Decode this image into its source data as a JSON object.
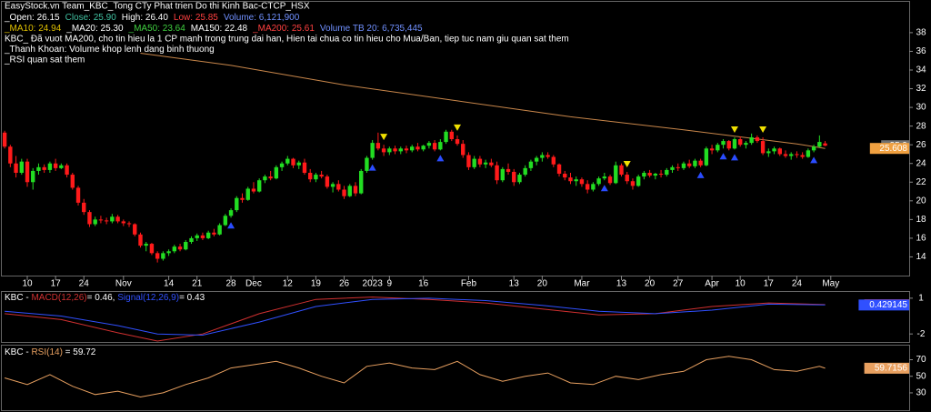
{
  "chart_data": [
    {
      "type": "candlestick",
      "title": "EasyStock.vn Team_KBC_Tong CTy Phat trien Do thi Kinh Bac-CTCP_HSX",
      "stats": [
        {
          "text": "_Open: 26.15",
          "color": "#ffffff"
        },
        {
          "text": "Close: 25.90",
          "color": "#40c0a0"
        },
        {
          "text": "High: 26.40",
          "color": "#ffffff"
        },
        {
          "text": "Low: 25.85",
          "color": "#ff4040"
        },
        {
          "text": "Volume: 6,121,900",
          "color": "#7090ff"
        }
      ],
      "moving_averages": [
        {
          "text": "_MA10: 24.94",
          "color": "#e0c000"
        },
        {
          "text": "_MA20: 25.30",
          "color": "#ffffff"
        },
        {
          "text": "_MA50: 23.64",
          "color": "#40d040"
        },
        {
          "text": "MA150: 22.48",
          "color": "#ffffff"
        },
        {
          "text": "_MA200: 25.61",
          "color": "#ff4040"
        },
        {
          "text": "Volume TB 20: 6,735,445",
          "color": "#7090ff"
        }
      ],
      "notes": [
        "KBC_ Đã vuot MA200, cho tin hieu la 1 CP manh trong trung dai han, Hien tai chua co tin hieu cho Mua/Ban, tiep tuc nam giu quan sat them",
        "_Thanh Khoan: Volume khop lenh dang binh thuong",
        "_RSI quan sat them"
      ],
      "xlim": [
        -0.5,
        147
      ],
      "xticks": [
        {
          "value": 4,
          "label": "10"
        },
        {
          "value": 9,
          "label": "17"
        },
        {
          "value": 14,
          "label": "24"
        },
        {
          "value": 21,
          "label": "Nov"
        },
        {
          "value": 29,
          "label": "14"
        },
        {
          "value": 34,
          "label": "21"
        },
        {
          "value": 40,
          "label": "28"
        },
        {
          "value": 44,
          "label": "Dec"
        },
        {
          "value": 50,
          "label": "12"
        },
        {
          "value": 55,
          "label": "19"
        },
        {
          "value": 60,
          "label": "26"
        },
        {
          "value": 65,
          "label": "2023"
        },
        {
          "value": 68,
          "label": "9"
        },
        {
          "value": 74,
          "label": "16"
        },
        {
          "value": 82,
          "label": "Feb"
        },
        {
          "value": 90,
          "label": "13"
        },
        {
          "value": 95,
          "label": "20"
        },
        {
          "value": 102,
          "label": "Mar"
        },
        {
          "value": 109,
          "label": "13"
        },
        {
          "value": 114,
          "label": "20"
        },
        {
          "value": 119,
          "label": "27"
        },
        {
          "value": 125,
          "label": "Apr"
        },
        {
          "value": 130,
          "label": "10"
        },
        {
          "value": 135,
          "label": "17"
        },
        {
          "value": 140,
          "label": "24"
        },
        {
          "value": 146,
          "label": "May"
        }
      ],
      "ylim": [
        12,
        41.3
      ],
      "yticks": [
        14,
        16,
        18,
        20,
        22,
        24,
        26,
        28,
        30,
        32,
        34,
        36,
        38
      ],
      "up_color": "#22dd22",
      "down_color": "#ff1a1a",
      "candles": [
        [
          27.3,
          27.5,
          25.6,
          25.8
        ],
        [
          25.8,
          26,
          23.6,
          24
        ],
        [
          24,
          24.8,
          22.5,
          23
        ],
        [
          23,
          24.5,
          22.8,
          24.2
        ],
        [
          24.2,
          24.5,
          21.5,
          22
        ],
        [
          22,
          23.5,
          21.2,
          23.2
        ],
        [
          23.2,
          24,
          22.8,
          23.6
        ],
        [
          23.6,
          23.9,
          23,
          23.3
        ],
        [
          23.3,
          24.2,
          23,
          24
        ],
        [
          24,
          24.5,
          23.2,
          23.5
        ],
        [
          23.5,
          24,
          23.4,
          23.8
        ],
        [
          23.8,
          24,
          22.5,
          22.8
        ],
        [
          22.8,
          23,
          21.2,
          21.4
        ],
        [
          21.4,
          21.6,
          19.5,
          19.8
        ],
        [
          19.8,
          20.2,
          18.5,
          18.8
        ],
        [
          18.8,
          19,
          17.2,
          17.5
        ],
        [
          17.5,
          18.3,
          17.3,
          18
        ],
        [
          18,
          18.4,
          17.6,
          17.9
        ],
        [
          17.9,
          18.2,
          17.5,
          17.8
        ],
        [
          17.8,
          18.6,
          17.6,
          18.3
        ],
        [
          18.3,
          18.5,
          17.6,
          17.8
        ],
        [
          17.8,
          18,
          17.3,
          17.6
        ],
        [
          17.6,
          17.8,
          17.2,
          17.5
        ],
        [
          17.5,
          17.6,
          16.2,
          16.4
        ],
        [
          16.4,
          16.6,
          15,
          15.2
        ],
        [
          15.2,
          15.6,
          14.6,
          15.4
        ],
        [
          15.4,
          15.5,
          14.2,
          14.4
        ],
        [
          14.4,
          14.6,
          13.4,
          13.8
        ],
        [
          13.8,
          14.6,
          13.6,
          14.4
        ],
        [
          14.4,
          14.8,
          14.1,
          14.6
        ],
        [
          14.6,
          15.3,
          14.4,
          15.1
        ],
        [
          15.1,
          15.4,
          14.6,
          14.8
        ],
        [
          14.8,
          15.8,
          14.7,
          15.6
        ],
        [
          15.6,
          16.2,
          15.4,
          16
        ],
        [
          16,
          16.5,
          15.7,
          16.3
        ],
        [
          16.3,
          16.6,
          15.8,
          16
        ],
        [
          16,
          16.8,
          15.9,
          16.6
        ],
        [
          16.6,
          17,
          16.2,
          16.4
        ],
        [
          16.4,
          17.6,
          16.3,
          17.4
        ],
        [
          17.4,
          18.6,
          17.3,
          18.4
        ],
        [
          18.4,
          19.2,
          18.2,
          19
        ],
        [
          19,
          20.5,
          18.8,
          20.3
        ],
        [
          20.3,
          20.8,
          19.8,
          20.1
        ],
        [
          20.1,
          21.5,
          20,
          21.3
        ],
        [
          21.3,
          22,
          20.8,
          21
        ],
        [
          21,
          22.4,
          20.9,
          22.2
        ],
        [
          22.2,
          22.8,
          21.9,
          22.6
        ],
        [
          22.6,
          23.2,
          22.2,
          22.4
        ],
        [
          22.4,
          23.8,
          22.3,
          23.6
        ],
        [
          23.6,
          24.2,
          23.2,
          24
        ],
        [
          24,
          24.8,
          23.8,
          24.5
        ],
        [
          24.5,
          24.6,
          23.5,
          23.8
        ],
        [
          23.8,
          24.3,
          23.4,
          24.1
        ],
        [
          24.1,
          24.5,
          22.8,
          23
        ],
        [
          23,
          23.4,
          22,
          22.3
        ],
        [
          22.3,
          23,
          22,
          22.8
        ],
        [
          22.8,
          23.2,
          22.4,
          22.6
        ],
        [
          22.6,
          22.8,
          21.3,
          21.5
        ],
        [
          21.5,
          22,
          20.9,
          21.8
        ],
        [
          21.8,
          22.2,
          21,
          21.2
        ],
        [
          21.2,
          21.6,
          20.2,
          20.5
        ],
        [
          20.5,
          21.8,
          20.4,
          21.6
        ],
        [
          21.6,
          22,
          20.5,
          20.8
        ],
        [
          20.8,
          23.4,
          20.7,
          23.2
        ],
        [
          23.2,
          24.8,
          23,
          24.6
        ],
        [
          24.6,
          26.5,
          24.4,
          26.2
        ],
        [
          26.2,
          27.3,
          25.4,
          25.6
        ],
        [
          25.6,
          26,
          24.8,
          25.2
        ],
        [
          25.2,
          25.8,
          24.9,
          25.6
        ],
        [
          25.6,
          25.9,
          25,
          25.3
        ],
        [
          25.3,
          25.8,
          25,
          25.6
        ],
        [
          25.6,
          25.9,
          25.1,
          25.4
        ],
        [
          25.4,
          26,
          25.2,
          25.8
        ],
        [
          25.8,
          26.2,
          25.3,
          25.5
        ],
        [
          25.5,
          26,
          25.3,
          25.9
        ],
        [
          25.9,
          26.4,
          25.6,
          26.2
        ],
        [
          26.2,
          26.5,
          25.3,
          25.5
        ],
        [
          25.5,
          26.6,
          25.4,
          26.3
        ],
        [
          26.3,
          27.6,
          26.1,
          27.4
        ],
        [
          27.4,
          27.6,
          26.4,
          26.6
        ],
        [
          26.6,
          27,
          25.9,
          26.1
        ],
        [
          26.1,
          26.5,
          24.6,
          24.9
        ],
        [
          24.9,
          25.2,
          23.3,
          23.6
        ],
        [
          23.6,
          24.8,
          23.4,
          24.5
        ],
        [
          24.5,
          24.8,
          23.6,
          23.9
        ],
        [
          23.9,
          24.4,
          23.5,
          24.1
        ],
        [
          24.1,
          24.5,
          23.6,
          23.8
        ],
        [
          23.8,
          24.2,
          21.8,
          22.2
        ],
        [
          22.2,
          23.6,
          22,
          23.4
        ],
        [
          23.4,
          24,
          22.8,
          23.1
        ],
        [
          23.1,
          23.4,
          21.6,
          22
        ],
        [
          22,
          23,
          21.8,
          22.8
        ],
        [
          22.8,
          23.8,
          22.6,
          23.5
        ],
        [
          23.5,
          24.4,
          23.2,
          24.2
        ],
        [
          24.2,
          24.8,
          23.8,
          24.6
        ],
        [
          24.6,
          25.2,
          24.2,
          24.9
        ],
        [
          24.9,
          25.2,
          24.5,
          24.7
        ],
        [
          24.7,
          24.9,
          23.6,
          23.9
        ],
        [
          23.9,
          24,
          22.6,
          22.9
        ],
        [
          22.9,
          23.2,
          22.2,
          22.5
        ],
        [
          22.5,
          23,
          21.8,
          22.1
        ],
        [
          22.1,
          22.6,
          21.6,
          22.3
        ],
        [
          22.3,
          22.5,
          21.5,
          21.8
        ],
        [
          21.8,
          22.2,
          20.8,
          21.2
        ],
        [
          21.2,
          22,
          21,
          21.8
        ],
        [
          21.8,
          22.6,
          21.6,
          22.4
        ],
        [
          22.4,
          23,
          22.2,
          22.6
        ],
        [
          22.6,
          22.8,
          21.7,
          21.9
        ],
        [
          21.9,
          24.2,
          21.8,
          23.8
        ],
        [
          23.8,
          24,
          22.6,
          22.8
        ],
        [
          22.8,
          23.1,
          21.8,
          22.1
        ],
        [
          22.1,
          22.4,
          21.2,
          21.6
        ],
        [
          21.6,
          22.8,
          21.5,
          22.6
        ],
        [
          22.6,
          23.2,
          22.3,
          23
        ],
        [
          23,
          23.3,
          22.5,
          22.7
        ],
        [
          22.7,
          23,
          22.3,
          22.9
        ],
        [
          22.9,
          23.3,
          22.5,
          22.8
        ],
        [
          22.8,
          23.5,
          22.6,
          23.3
        ],
        [
          23.3,
          23.8,
          23,
          23.6
        ],
        [
          23.6,
          24,
          23.2,
          23.5
        ],
        [
          23.5,
          24.2,
          23.3,
          24
        ],
        [
          24,
          24.4,
          23.5,
          23.7
        ],
        [
          23.7,
          24.5,
          23.5,
          24.3
        ],
        [
          24.3,
          24.5,
          23.6,
          23.8
        ],
        [
          23.8,
          25.8,
          23.7,
          25.6
        ],
        [
          25.6,
          26,
          25,
          25.4
        ],
        [
          25.4,
          26.2,
          25.2,
          26
        ],
        [
          26,
          26.6,
          25.6,
          26.4
        ],
        [
          26.4,
          26.5,
          25.4,
          25.6
        ],
        [
          25.6,
          26.8,
          25.5,
          26.6
        ],
        [
          26.6,
          26.9,
          25.8,
          26
        ],
        [
          26,
          26.4,
          25.6,
          26.2
        ],
        [
          26.2,
          27.2,
          26,
          26.8
        ],
        [
          26.8,
          27,
          26.2,
          26.4
        ],
        [
          26.4,
          26.8,
          24.9,
          25.1
        ],
        [
          25.1,
          25.6,
          24.7,
          25.3
        ],
        [
          25.3,
          25.8,
          25,
          25.6
        ],
        [
          25.6,
          25.7,
          24.8,
          25
        ],
        [
          25,
          25.4,
          24.6,
          24.8
        ],
        [
          24.8,
          25.2,
          24.4,
          25
        ],
        [
          25,
          25.3,
          24.6,
          24.9
        ],
        [
          24.9,
          25.2,
          24.5,
          24.7
        ],
        [
          24.7,
          25.6,
          24.6,
          25.4
        ],
        [
          25.4,
          26,
          25.2,
          25.8
        ],
        [
          25.8,
          27,
          25.7,
          26.3
        ],
        [
          26.15,
          26.4,
          25.85,
          25.9
        ]
      ],
      "series": [
        {
          "name": "MA200",
          "color": "#c8864a",
          "x": [
            24,
            40,
            60,
            80,
            100,
            120,
            140,
            145
          ],
          "values": [
            35.8,
            34.5,
            32.4,
            30.7,
            29.0,
            27.6,
            26.1,
            25.61
          ]
        }
      ],
      "buy_signals": [
        40,
        65,
        77,
        106,
        123,
        127,
        129,
        143
      ],
      "buy_color": "#2a4cff",
      "sell_signals": [
        67,
        80,
        110,
        129,
        134
      ],
      "sell_color": "#f0e000",
      "price_tags": [
        {
          "value": 25.9,
          "color": "#707070"
        },
        {
          "value": 25.608,
          "color": "#f0a040"
        }
      ]
    },
    {
      "type": "line",
      "title_parts": [
        "KBC - ",
        "= 0.46, ",
        "= 0.43"
      ],
      "ylim": [
        -2.75,
        1.6
      ],
      "yticks": [
        1,
        -2
      ],
      "series": [
        {
          "name": "MACD(12,26)",
          "color": "#d03030",
          "tag": 0.45579,
          "x": [
            0,
            10,
            20,
            27,
            35,
            45,
            55,
            65,
            75,
            85,
            95,
            105,
            115,
            125,
            135,
            145
          ],
          "values": [
            -0.3,
            -0.8,
            -1.9,
            -2.6,
            -2.0,
            -0.3,
            0.9,
            1.1,
            0.9,
            0.6,
            0.1,
            -0.4,
            -0.3,
            0.3,
            0.6,
            0.46
          ]
        },
        {
          "name": "Signal(12,26,9)",
          "color": "#3050ff",
          "tag": 0.429145,
          "x": [
            0,
            10,
            20,
            27,
            35,
            45,
            55,
            65,
            75,
            85,
            95,
            105,
            115,
            125,
            135,
            145
          ],
          "values": [
            -0.1,
            -0.5,
            -1.3,
            -2.0,
            -2.1,
            -1.0,
            0.3,
            0.9,
            1.0,
            0.8,
            0.4,
            -0.1,
            -0.3,
            0.0,
            0.5,
            0.43
          ]
        }
      ]
    },
    {
      "type": "line",
      "title_parts": [
        "KBC - ",
        " = 59.72"
      ],
      "ylim": [
        8,
        87
      ],
      "yticks": [
        70,
        50,
        30
      ],
      "series": [
        {
          "name": "RSI(14)",
          "color": "#e8a060",
          "tag": 59.7156,
          "x": [
            0,
            4,
            8,
            12,
            16,
            20,
            24,
            28,
            32,
            36,
            40,
            44,
            48,
            52,
            56,
            60,
            64,
            68,
            72,
            76,
            80,
            84,
            88,
            92,
            96,
            100,
            104,
            108,
            112,
            116,
            120,
            124,
            128,
            132,
            136,
            140,
            144,
            145
          ],
          "values": [
            48,
            40,
            52,
            38,
            28,
            32,
            25,
            30,
            40,
            48,
            60,
            64,
            68,
            60,
            50,
            42,
            62,
            66,
            60,
            58,
            68,
            52,
            44,
            50,
            54,
            42,
            40,
            50,
            46,
            52,
            56,
            70,
            74,
            70,
            58,
            56,
            62,
            59.72
          ]
        }
      ]
    }
  ]
}
